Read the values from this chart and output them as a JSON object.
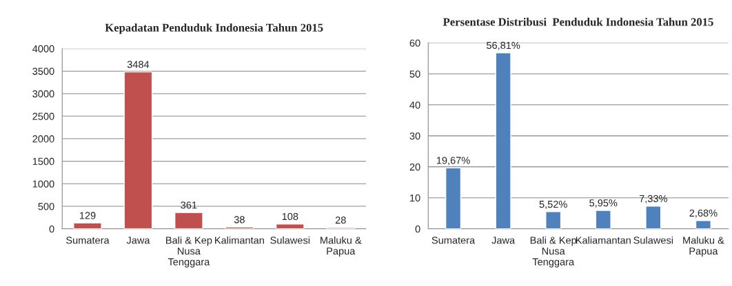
{
  "chart_data": [
    {
      "type": "bar",
      "title": "Kepadatan Penduduk Indonesia Tahun 2015",
      "categories": [
        "Sumatera",
        "Jawa",
        "Bali & Kep\nNusa\nTenggara",
        "Kalimantan",
        "Sulawesi",
        "Maluku &\nPapua"
      ],
      "values": [
        129,
        3484,
        361,
        38,
        108,
        28
      ],
      "color": "#c0504d",
      "ylim": [
        0,
        4000
      ],
      "yticks": [
        0,
        500,
        1000,
        1500,
        2000,
        2500,
        3000,
        3500,
        4000
      ],
      "grid": "y",
      "data_labels": true
    },
    {
      "type": "bar",
      "title": "Persentase Distribusi  Penduduk Indonesia Tahun 2015",
      "categories": [
        "Sumatera",
        "Jawa",
        "Bali & Kep\nNusa\nTenggara",
        "Kaliamantan",
        "Sulawesi",
        "Maluku &\nPapua"
      ],
      "values": [
        19.67,
        56.81,
        5.52,
        5.95,
        7.33,
        2.68
      ],
      "value_labels": [
        "19,67%",
        "56,81%",
        "5,52%",
        "5,95%",
        "7,33%",
        "2,68%"
      ],
      "color": "#4f81bd",
      "ylim": [
        0,
        60
      ],
      "yticks": [
        0,
        10,
        20,
        30,
        40,
        50,
        60
      ],
      "grid": "y"
    }
  ]
}
